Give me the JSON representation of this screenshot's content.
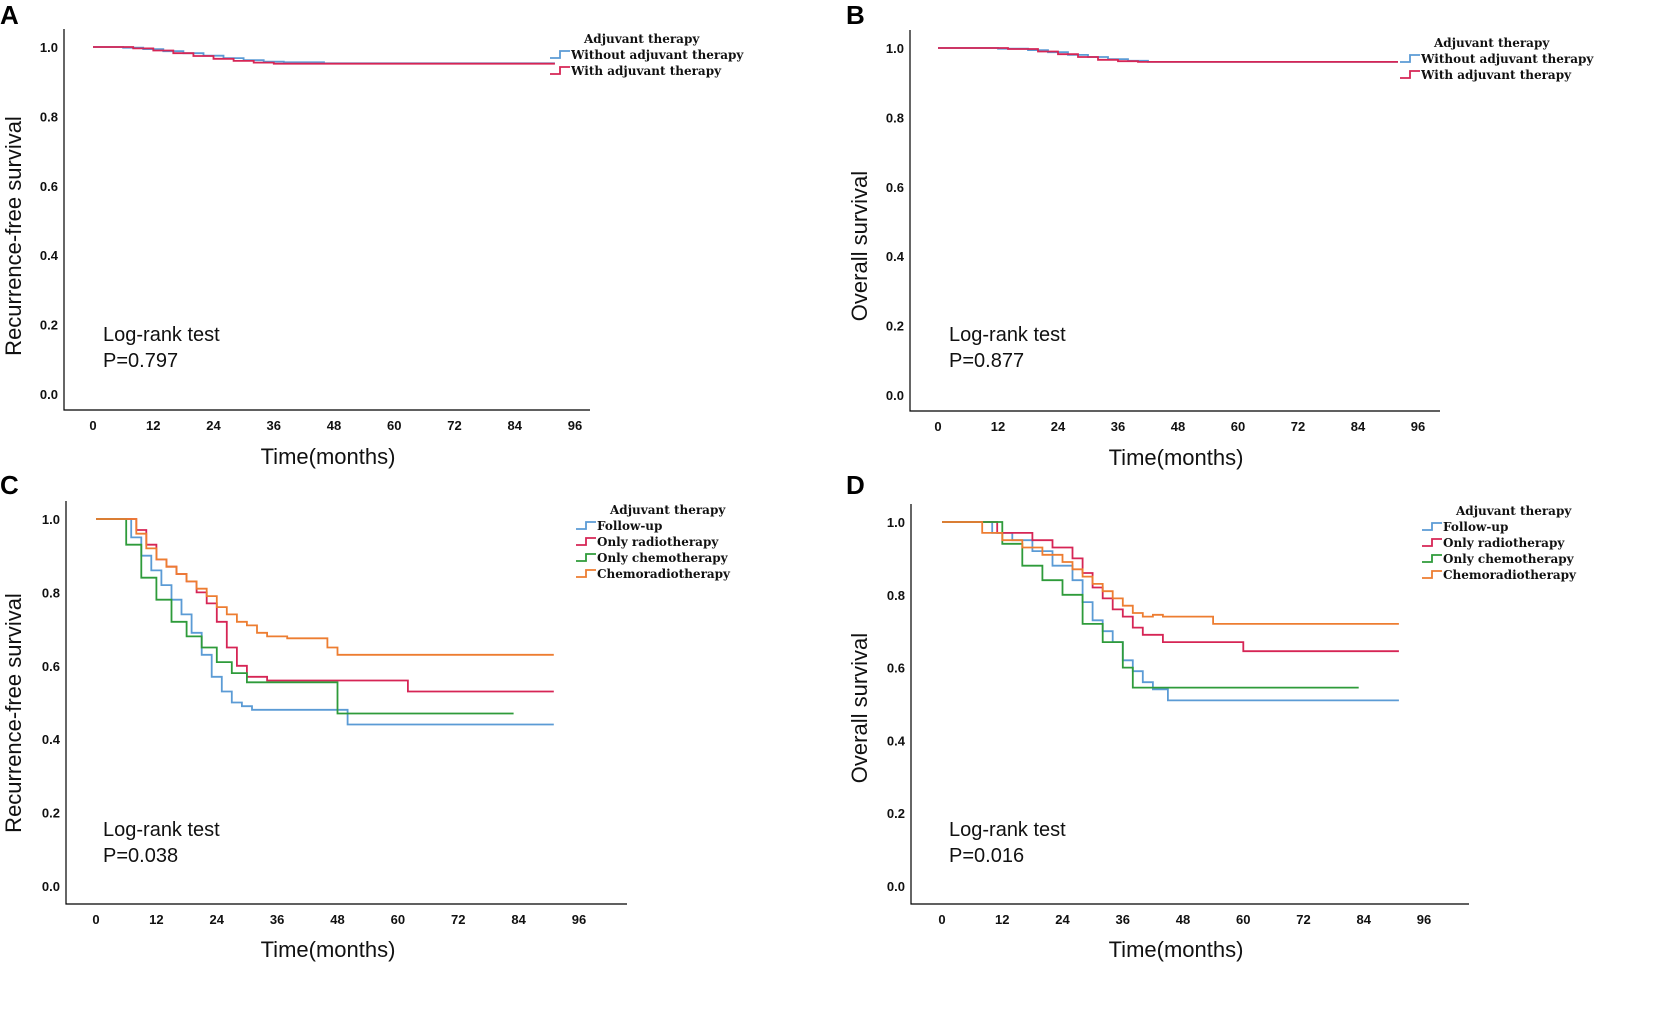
{
  "chart_data": [
    {
      "panel": "A",
      "type": "line",
      "step": true,
      "title": "",
      "xlabel": "Time(months)",
      "ylabel": "Recurrence-free survival",
      "xlim": [
        0,
        96
      ],
      "ylim": [
        0,
        1
      ],
      "xticks": [
        "0",
        "12",
        "24",
        "36",
        "48",
        "60",
        "72",
        "84",
        "96"
      ],
      "yticks": [
        "0.0",
        "0.2",
        "0.4",
        "0.6",
        "0.8",
        "1.0"
      ],
      "legend": {
        "title": "Adjuvant therapy",
        "position": "top-right"
      },
      "annotation": [
        "Log-rank test",
        "P=0.797"
      ],
      "series": [
        {
          "name": "Without adjuvant therapy",
          "color": "#5b9bd5",
          "x": [
            0,
            6,
            10,
            14,
            18,
            22,
            26,
            30,
            34,
            38,
            46,
            92
          ],
          "y": [
            1.0,
            0.998,
            0.994,
            0.988,
            0.982,
            0.975,
            0.968,
            0.962,
            0.958,
            0.956,
            0.953,
            0.953
          ]
        },
        {
          "name": "With adjuvant therapy",
          "color": "#d62555",
          "x": [
            0,
            8,
            12,
            16,
            20,
            24,
            28,
            32,
            36,
            92
          ],
          "y": [
            1.0,
            0.996,
            0.99,
            0.982,
            0.974,
            0.966,
            0.96,
            0.955,
            0.952,
            0.952
          ]
        }
      ]
    },
    {
      "panel": "B",
      "type": "line",
      "step": true,
      "title": "",
      "xlabel": "Time(months)",
      "ylabel": "Overall survival",
      "xlim": [
        0,
        96
      ],
      "ylim": [
        0,
        1
      ],
      "xticks": [
        "0",
        "12",
        "24",
        "36",
        "48",
        "60",
        "72",
        "84",
        "96"
      ],
      "yticks": [
        "0.0",
        "0.2",
        "0.4",
        "0.6",
        "0.8",
        "1.0"
      ],
      "legend": {
        "title": "Adjuvant therapy",
        "position": "top-right"
      },
      "annotation": [
        "Log-rank test",
        "P=0.877"
      ],
      "series": [
        {
          "name": "Without adjuvant therapy",
          "color": "#5b9bd5",
          "x": [
            0,
            12,
            18,
            22,
            26,
            30,
            34,
            38,
            42,
            92
          ],
          "y": [
            1.0,
            0.998,
            0.994,
            0.988,
            0.98,
            0.974,
            0.968,
            0.963,
            0.96,
            0.96
          ]
        },
        {
          "name": "With adjuvant therapy",
          "color": "#d62555",
          "x": [
            0,
            14,
            20,
            24,
            28,
            32,
            36,
            40,
            92
          ],
          "y": [
            1.0,
            0.997,
            0.99,
            0.982,
            0.974,
            0.966,
            0.962,
            0.96,
            0.96
          ]
        }
      ]
    },
    {
      "panel": "C",
      "type": "line",
      "step": true,
      "title": "",
      "xlabel": "Time(months)",
      "ylabel": "Recurrence-free survival",
      "xlim": [
        0,
        96
      ],
      "ylim": [
        0,
        1
      ],
      "xticks": [
        "0",
        "12",
        "24",
        "36",
        "48",
        "60",
        "72",
        "84",
        "96"
      ],
      "yticks": [
        "0.0",
        "0.2",
        "0.4",
        "0.6",
        "0.8",
        "1.0"
      ],
      "legend": {
        "title": "Adjuvant therapy",
        "position": "top-right"
      },
      "annotation": [
        "Log-rank test",
        "P=0.038"
      ],
      "series": [
        {
          "name": "Follow-up",
          "color": "#5b9bd5",
          "x": [
            0,
            7,
            9,
            11,
            13,
            15,
            17,
            19,
            21,
            23,
            25,
            27,
            29,
            31,
            33,
            50,
            91
          ],
          "y": [
            1.0,
            0.95,
            0.9,
            0.86,
            0.82,
            0.78,
            0.74,
            0.69,
            0.63,
            0.57,
            0.53,
            0.5,
            0.49,
            0.48,
            0.48,
            0.44,
            0.44
          ]
        },
        {
          "name": "Only radiotherapy",
          "color": "#d62555",
          "x": [
            0,
            8,
            10,
            12,
            14,
            16,
            18,
            20,
            22,
            24,
            26,
            28,
            30,
            34,
            62,
            91
          ],
          "y": [
            1.0,
            0.97,
            0.93,
            0.89,
            0.87,
            0.85,
            0.83,
            0.8,
            0.77,
            0.72,
            0.65,
            0.6,
            0.57,
            0.56,
            0.53,
            0.53
          ]
        },
        {
          "name": "Only chemotherapy",
          "color": "#2e9b3a",
          "x": [
            0,
            6,
            9,
            12,
            15,
            18,
            21,
            24,
            27,
            30,
            48,
            83
          ],
          "y": [
            1.0,
            0.93,
            0.84,
            0.78,
            0.72,
            0.68,
            0.65,
            0.61,
            0.58,
            0.555,
            0.47,
            0.47
          ]
        },
        {
          "name": "Chemoradiotherapy",
          "color": "#ed7d31",
          "x": [
            0,
            8,
            10,
            12,
            14,
            16,
            18,
            20,
            22,
            24,
            26,
            28,
            30,
            32,
            34,
            38,
            46,
            48,
            91
          ],
          "y": [
            1.0,
            0.96,
            0.92,
            0.89,
            0.87,
            0.85,
            0.83,
            0.81,
            0.79,
            0.76,
            0.74,
            0.72,
            0.71,
            0.69,
            0.68,
            0.675,
            0.65,
            0.63,
            0.63
          ]
        }
      ]
    },
    {
      "panel": "D",
      "type": "line",
      "step": true,
      "title": "",
      "xlabel": "Time(months)",
      "ylabel": "Overall survival",
      "xlim": [
        0,
        96
      ],
      "ylim": [
        0,
        1
      ],
      "xticks": [
        "0",
        "12",
        "24",
        "36",
        "48",
        "60",
        "72",
        "84",
        "96"
      ],
      "yticks": [
        "0.0",
        "0.2",
        "0.4",
        "0.6",
        "0.8",
        "1.0"
      ],
      "legend": {
        "title": "Adjuvant therapy",
        "position": "top-right"
      },
      "annotation": [
        "Log-rank test",
        "P=0.016"
      ],
      "series": [
        {
          "name": "Follow-up",
          "color": "#5b9bd5",
          "x": [
            0,
            10,
            14,
            18,
            22,
            26,
            28,
            30,
            32,
            34,
            36,
            38,
            40,
            42,
            45,
            91
          ],
          "y": [
            1.0,
            0.97,
            0.95,
            0.92,
            0.88,
            0.84,
            0.78,
            0.73,
            0.7,
            0.67,
            0.62,
            0.59,
            0.56,
            0.54,
            0.51,
            0.51
          ]
        },
        {
          "name": "Only radiotherapy",
          "color": "#d62555",
          "x": [
            0,
            11,
            18,
            22,
            26,
            28,
            30,
            32,
            34,
            36,
            38,
            40,
            44,
            60,
            91
          ],
          "y": [
            1.0,
            0.97,
            0.95,
            0.93,
            0.9,
            0.86,
            0.82,
            0.79,
            0.76,
            0.74,
            0.71,
            0.69,
            0.67,
            0.645,
            0.645
          ]
        },
        {
          "name": "Only chemotherapy",
          "color": "#2e9b3a",
          "x": [
            0,
            12,
            16,
            20,
            24,
            28,
            32,
            36,
            38,
            83
          ],
          "y": [
            1.0,
            0.94,
            0.88,
            0.84,
            0.8,
            0.72,
            0.67,
            0.6,
            0.545,
            0.545
          ]
        },
        {
          "name": "Chemoradiotherapy",
          "color": "#ed7d31",
          "x": [
            0,
            8,
            12,
            16,
            20,
            24,
            26,
            28,
            30,
            32,
            34,
            36,
            38,
            40,
            42,
            44,
            54,
            91
          ],
          "y": [
            1.0,
            0.97,
            0.95,
            0.93,
            0.91,
            0.89,
            0.87,
            0.85,
            0.83,
            0.81,
            0.79,
            0.77,
            0.75,
            0.74,
            0.745,
            0.74,
            0.72,
            0.72
          ]
        }
      ]
    }
  ]
}
